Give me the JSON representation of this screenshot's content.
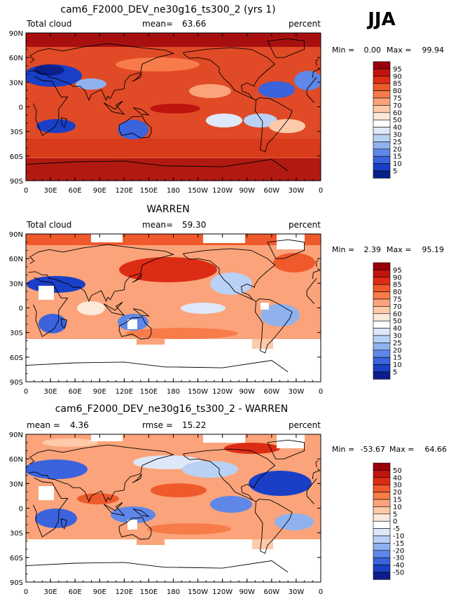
{
  "season": "JJA",
  "chart_data": [
    {
      "type": "heatmap",
      "title": "cam6_F2000_DEV_ne30g16_ts300_2 (yrs 1)",
      "variable": "Total cloud",
      "stat_label": "mean=",
      "stat_value": "63.66",
      "units": "percent",
      "min_label": "Min =",
      "min_value": "0.00",
      "max_label": "Max =",
      "max_value": "99.94",
      "y_ticks": [
        "90N",
        "60N",
        "30N",
        "0",
        "30S",
        "60S",
        "90S"
      ],
      "x_ticks": [
        "0",
        "30E",
        "60E",
        "90E",
        "120E",
        "150E",
        "180",
        "150W",
        "120W",
        "90W",
        "60W",
        "30W",
        "0"
      ],
      "colorbar_levels": [
        "95",
        "90",
        "85",
        "80",
        "75",
        "70",
        "60",
        "50",
        "40",
        "30",
        "25",
        "20",
        "15",
        "10",
        "5"
      ],
      "colorbar_colors": [
        "#99000d",
        "#c0140f",
        "#dc2d14",
        "#ef5a2c",
        "#f77c4a",
        "#fba37a",
        "#fdcaaa",
        "#fde9d9",
        "#ffffff",
        "#dde8f8",
        "#b9d1f4",
        "#8fb2ef",
        "#5f87e8",
        "#3a63dc",
        "#1a3fc6",
        "#0a1f8c"
      ]
    },
    {
      "type": "heatmap",
      "title": "WARREN",
      "variable": "Total cloud",
      "stat_label": "mean=",
      "stat_value": "59.30",
      "units": "percent",
      "min_label": "Min =",
      "min_value": "2.39",
      "max_label": "Max =",
      "max_value": "95.19",
      "y_ticks": [
        "90N",
        "60N",
        "30N",
        "0",
        "30S",
        "60S",
        "90S"
      ],
      "x_ticks": [
        "0",
        "30E",
        "60E",
        "90E",
        "120E",
        "150E",
        "180",
        "150W",
        "120W",
        "90W",
        "60W",
        "30W",
        "0"
      ],
      "colorbar_levels": [
        "95",
        "90",
        "85",
        "80",
        "75",
        "70",
        "60",
        "50",
        "40",
        "30",
        "25",
        "20",
        "15",
        "10",
        "5"
      ],
      "colorbar_colors": [
        "#99000d",
        "#c0140f",
        "#dc2d14",
        "#ef5a2c",
        "#f77c4a",
        "#fba37a",
        "#fdcaaa",
        "#fde9d9",
        "#ffffff",
        "#dde8f8",
        "#b9d1f4",
        "#8fb2ef",
        "#5f87e8",
        "#3a63dc",
        "#1a3fc6",
        "#0a1f8c"
      ]
    },
    {
      "type": "heatmap",
      "title": "cam6_F2000_DEV_ne30g16_ts300_2 - WARREN",
      "stat_label": "mean =",
      "stat_value": "4.36",
      "stat2_label": "rmse =",
      "stat2_value": "15.22",
      "units": "percent",
      "min_label": "Min =",
      "min_value": "-53.67",
      "max_label": "Max =",
      "max_value": "64.66",
      "y_ticks": [
        "90N",
        "60N",
        "30N",
        "0",
        "30S",
        "60S",
        "90S"
      ],
      "x_ticks": [
        "0",
        "30E",
        "60E",
        "90E",
        "120E",
        "150E",
        "180",
        "150W",
        "120W",
        "90W",
        "60W",
        "30W",
        "0"
      ],
      "colorbar_levels": [
        "50",
        "40",
        "30",
        "20",
        "15",
        "10",
        "5",
        "0",
        "-5",
        "-10",
        "-15",
        "-20",
        "-30",
        "-40",
        "-50"
      ],
      "colorbar_colors": [
        "#99000d",
        "#c0140f",
        "#dc2d14",
        "#ef5a2c",
        "#f77c4a",
        "#fba37a",
        "#fdcaaa",
        "#fde9d9",
        "#ffffff",
        "#dde8f8",
        "#b9d1f4",
        "#8fb2ef",
        "#5f87e8",
        "#3a63dc",
        "#1a3fc6",
        "#0a1f8c"
      ]
    }
  ]
}
